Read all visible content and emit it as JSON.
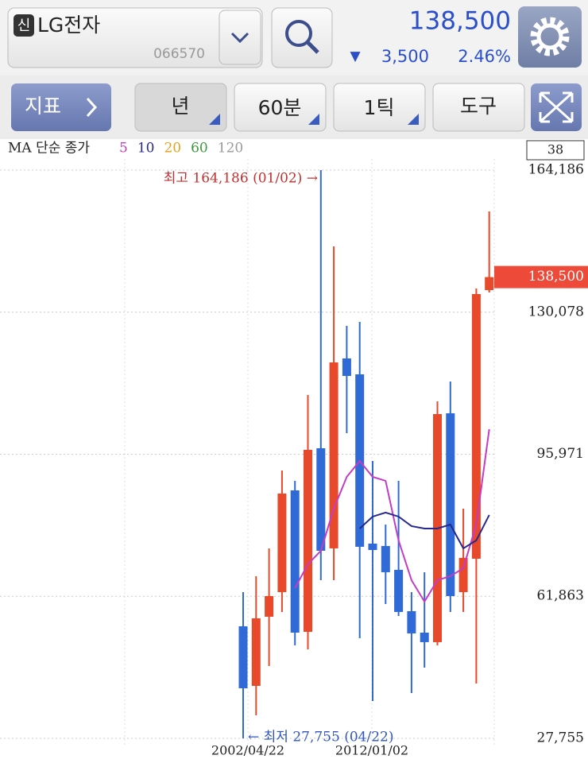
{
  "header": {
    "badge": "신",
    "name": "LG전자",
    "code": "066570",
    "price": "138,500",
    "change_arrow": "▼",
    "change": "3,500",
    "change_rate": "2.46%"
  },
  "toolbar": {
    "indicator": "지표",
    "period": "년",
    "interval": "60분",
    "tick": "1틱",
    "tools": "도구"
  },
  "counter": "38",
  "chart_data": {
    "type": "candlestick",
    "legend_title": "MA 단순 종가",
    "categories": [
      "2002/04/22",
      null,
      null,
      null,
      null,
      null,
      null,
      null,
      null,
      null,
      "2012/01/02",
      null,
      null,
      null,
      null,
      null,
      null,
      null,
      null,
      null
    ],
    "open": [
      54667,
      40357,
      56956,
      62871,
      87294,
      53331,
      97406,
      73365,
      118966,
      115150,
      74510,
      73938,
      68214,
      58292,
      53140,
      50851,
      105801,
      62871,
      70885,
      135375
    ],
    "high": [
      62871,
      66687,
      73365,
      92064,
      89583,
      110190,
      164186,
      145869,
      126789,
      127743,
      94353,
      79089,
      89583,
      62871,
      67641,
      108663,
      113433,
      82905,
      135757,
      154264
    ],
    "low": [
      27755,
      33297,
      45127,
      58101,
      50088,
      49134,
      65733,
      65733,
      101031,
      51805,
      36732,
      60009,
      57147,
      38640,
      44745,
      50088,
      58101,
      58101,
      40929,
      134803
    ],
    "close": [
      39784,
      56575,
      61917,
      86530,
      53140,
      97024,
      72793,
      118012,
      114769,
      73747,
      72984,
      67641,
      58101,
      52950,
      50851,
      105610,
      61917,
      71076,
      134421,
      138500
    ],
    "up_color": "#e8492a",
    "down_color": "#2f6ad6",
    "series": [
      {
        "name": "5",
        "color": "#c43cc4",
        "values": [
          null,
          null,
          null,
          null,
          63825,
          69549,
          72793,
          82905,
          90537,
          94353,
          90537,
          89583,
          75273,
          65733,
          60582,
          65733,
          66687,
          68595,
          79089,
          101985
        ]
      },
      {
        "name": "10",
        "color": "#26288f",
        "values": [
          null,
          null,
          null,
          null,
          null,
          null,
          null,
          null,
          null,
          78135,
          80997,
          81951,
          80997,
          78708,
          78135,
          78135,
          79089,
          73365,
          75273,
          81379
        ]
      },
      {
        "name": "20",
        "color": "#e3a21a"
      },
      {
        "name": "60",
        "color": "#3a9a3a"
      },
      {
        "name": "120",
        "color": "#9a9a9a"
      }
    ],
    "ylim": [
      27755,
      164186
    ],
    "yticks": [
      {
        "value": 27755,
        "label": "27,755"
      },
      {
        "value": 61863,
        "label": "61,863"
      },
      {
        "value": 95971,
        "label": "95,971"
      },
      {
        "value": 130078,
        "label": "130,078"
      },
      {
        "value": 164186,
        "label": "164,186"
      }
    ],
    "last_price": {
      "value": 138500,
      "label": "138,500"
    },
    "annotations": {
      "high": "최고 164,186 (01/02) →",
      "low": "← 최저 27,755 (04/22)"
    },
    "grid": true
  }
}
